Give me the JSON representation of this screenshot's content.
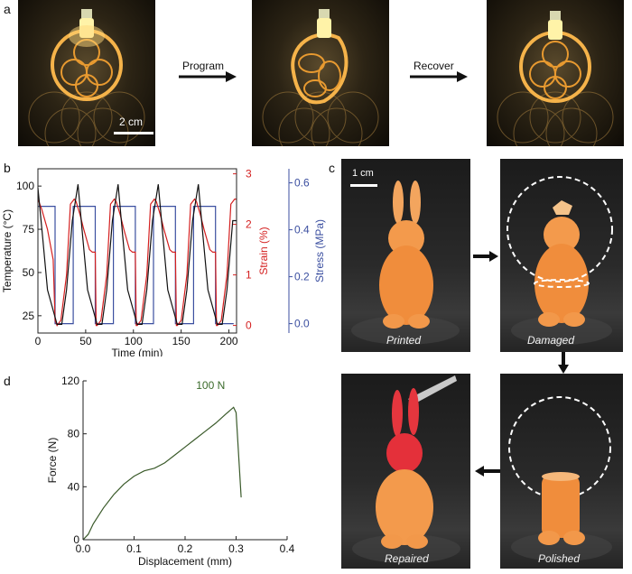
{
  "panels": {
    "a": "a",
    "b": "b",
    "c": "c",
    "d": "d"
  },
  "panel_a": {
    "arrow_program": "Program",
    "arrow_recover": "Recover",
    "scale_bar": "2 cm"
  },
  "panel_c": {
    "scale_bar": "1 cm",
    "captions": {
      "printed": "Printed",
      "damaged": "Damaged",
      "polished": "Polished",
      "repaired": "Repaired"
    }
  },
  "chart_data": [
    {
      "panel": "b",
      "type": "line",
      "xlabel": "Time (min)",
      "ylabel_left": "Temperature (°C)",
      "ylabel_right1": "Strain (%)",
      "ylabel_right2": "Stress (MPa)",
      "x_ticks": [
        0,
        50,
        100,
        150,
        200
      ],
      "y_left_ticks": [
        25,
        50,
        75,
        100
      ],
      "y_right1_ticks": [
        0,
        1,
        2,
        3
      ],
      "y_right2_ticks": [
        "0.0",
        "0.2",
        "0.4",
        "0.6"
      ],
      "xlim": [
        0,
        208
      ],
      "ylim_left": [
        15,
        110
      ],
      "ylim_right1": [
        -0.15,
        3.1
      ],
      "ylim_right2": [
        -0.04,
        0.66
      ],
      "colors": {
        "temperature": "#111111",
        "strain": "#d42020",
        "stress": "#3b4fa0"
      },
      "series": [
        {
          "name": "Temperature",
          "axis": "left",
          "x": [
            0,
            5,
            10,
            20,
            25,
            30,
            36,
            42,
            47,
            52,
            62,
            67,
            72,
            78,
            84,
            89,
            94,
            104,
            109,
            114,
            120,
            126,
            131,
            136,
            146,
            151,
            156,
            162,
            168,
            173,
            178,
            188,
            193,
            198,
            204,
            208
          ],
          "y": [
            99,
            70,
            40,
            20,
            20,
            40,
            80,
            101,
            70,
            40,
            20,
            20,
            40,
            80,
            101,
            70,
            40,
            20,
            20,
            40,
            80,
            101,
            70,
            40,
            20,
            20,
            40,
            80,
            101,
            70,
            40,
            20,
            20,
            40,
            80,
            80
          ]
        },
        {
          "name": "Strain",
          "axis": "right1",
          "x": [
            0,
            4,
            10,
            14,
            16,
            18,
            20,
            24,
            30,
            34,
            38,
            40,
            44,
            48,
            54,
            57,
            60,
            61,
            62,
            66,
            72,
            76,
            80,
            82,
            86,
            90,
            96,
            99,
            102,
            103,
            104,
            108,
            114,
            118,
            122,
            124,
            128,
            132,
            138,
            141,
            144,
            145,
            146,
            150,
            156,
            160,
            164,
            166,
            170,
            174,
            180,
            183,
            186,
            187,
            188,
            192,
            198,
            202,
            206,
            208
          ],
          "y": [
            2.5,
            2.3,
            1.9,
            1.5,
            1.3,
            0.1,
            0.0,
            0.1,
            1.0,
            2.4,
            2.5,
            2.45,
            2.2,
            1.9,
            1.5,
            1.45,
            1.45,
            0.0,
            0.0,
            0.1,
            1.0,
            2.4,
            2.5,
            2.45,
            2.2,
            1.9,
            1.5,
            1.45,
            1.45,
            0.0,
            0.0,
            0.1,
            1.0,
            2.4,
            2.5,
            2.45,
            2.2,
            1.9,
            1.5,
            1.45,
            1.45,
            0.0,
            0.0,
            0.1,
            1.0,
            2.4,
            2.5,
            2.45,
            2.2,
            1.9,
            1.5,
            1.45,
            1.45,
            0.0,
            0.0,
            0.1,
            1.0,
            2.4,
            2.5,
            2.5
          ]
        },
        {
          "name": "Stress",
          "axis": "right2",
          "x": [
            0,
            18,
            18,
            37,
            37,
            60,
            60,
            79,
            79,
            102,
            102,
            121,
            121,
            144,
            144,
            163,
            163,
            186,
            186,
            205
          ],
          "y": [
            0.5,
            0.5,
            0.0,
            0.0,
            0.5,
            0.5,
            0.0,
            0.0,
            0.5,
            0.5,
            0.0,
            0.0,
            0.5,
            0.5,
            0.0,
            0.0,
            0.5,
            0.5,
            0.0,
            0.0
          ]
        }
      ]
    },
    {
      "panel": "d",
      "type": "line",
      "xlabel": "Displacement (mm)",
      "ylabel": "Force (N)",
      "x_ticks": [
        "0.0",
        "0.1",
        "0.2",
        "0.3",
        "0.4"
      ],
      "y_ticks": [
        0,
        40,
        80,
        120
      ],
      "xlim": [
        0,
        0.4
      ],
      "ylim": [
        0,
        120
      ],
      "annotation": "100 N",
      "colors": {
        "line": "#3a5a2a",
        "annotation": "#3a6a2a"
      },
      "series": [
        {
          "name": "Force",
          "x": [
            0,
            0.01,
            0.02,
            0.04,
            0.06,
            0.08,
            0.1,
            0.12,
            0.14,
            0.16,
            0.18,
            0.2,
            0.22,
            0.24,
            0.26,
            0.28,
            0.295,
            0.3,
            0.31
          ],
          "y": [
            0,
            4,
            12,
            24,
            34,
            42,
            48,
            52,
            54,
            58,
            64,
            70,
            76,
            82,
            88,
            95,
            100,
            96,
            32
          ]
        }
      ]
    }
  ]
}
